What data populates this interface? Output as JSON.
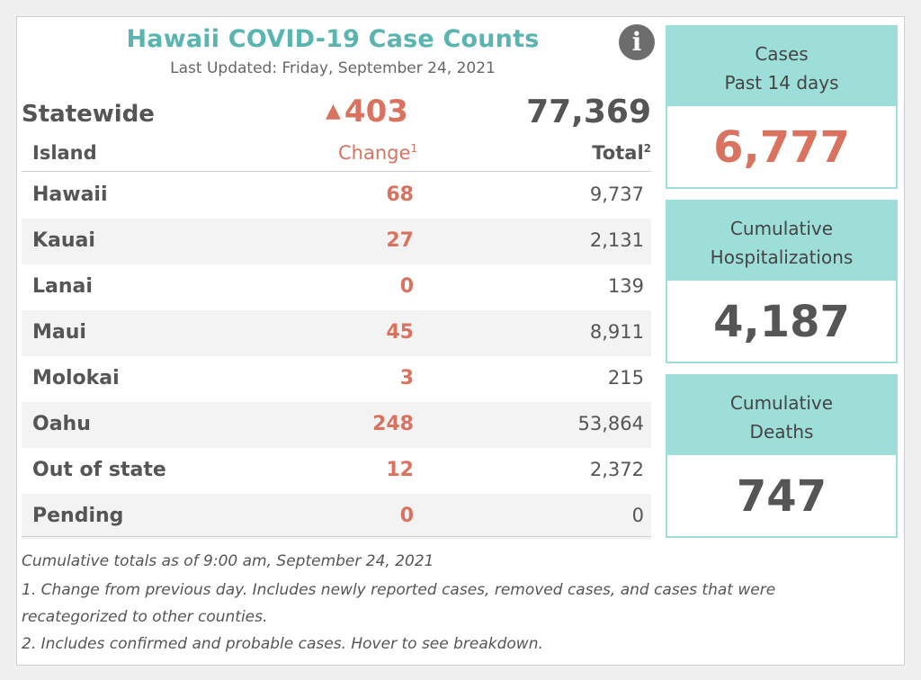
{
  "title": "Hawaii COVID-19 Case Counts",
  "updated": "Last Updated: Friday, September 24, 2021",
  "statewide": {
    "label": "Statewide",
    "change_arrow": "▲",
    "change": "403",
    "total": "77,369"
  },
  "columns": {
    "island": "Island",
    "change": "Change",
    "change_sup": "1",
    "total": "Total",
    "total_sup": "2"
  },
  "rows": [
    {
      "island": "Hawaii",
      "change": "68",
      "total": "9,737"
    },
    {
      "island": "Kauai",
      "change": "27",
      "total": "2,131"
    },
    {
      "island": "Lanai",
      "change": "0",
      "total": "139"
    },
    {
      "island": "Maui",
      "change": "45",
      "total": "8,911"
    },
    {
      "island": "Molokai",
      "change": "3",
      "total": "215"
    },
    {
      "island": "Oahu",
      "change": "248",
      "total": "53,864"
    },
    {
      "island": "Out of state",
      "change": "12",
      "total": "2,372"
    },
    {
      "island": "Pending",
      "change": "0",
      "total": "0"
    }
  ],
  "footnotes": {
    "asof": "Cumulative totals as of 9:00 am, September 24, 2021",
    "note1_line1": "1. Change from previous day. Includes newly reported cases, removed cases, and cases that were",
    "note1_line2": "recategorized to other counties.",
    "note2": "2. Includes confirmed and probable cases. Hover to see breakdown."
  },
  "cards": {
    "cases": {
      "line1": "Cases",
      "line2": "Past 14 days",
      "value": "6,777"
    },
    "hosp": {
      "line1": "Cumulative",
      "line2": "Hospitalizations",
      "value": "4,187"
    },
    "deaths": {
      "line1": "Cumulative",
      "line2": "Deaths",
      "value": "747"
    }
  },
  "colors": {
    "accent_teal": "#5ab5b0",
    "card_teal": "#9dded8",
    "change_red": "#d9725f"
  },
  "icons": {
    "info": "info-icon"
  },
  "info_glyph": "i"
}
